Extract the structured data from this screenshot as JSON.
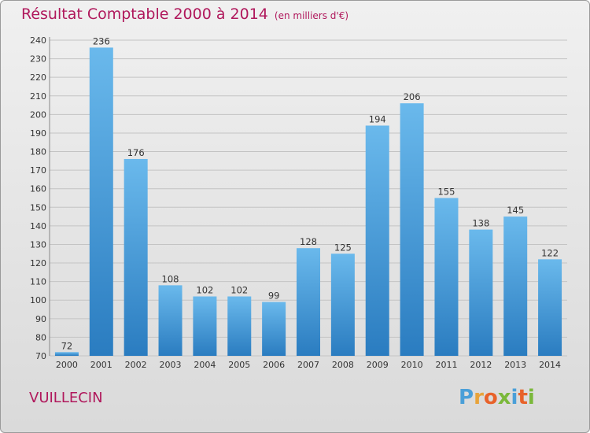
{
  "title": "Résultat Comptable 2000 à 2014",
  "subtitle": "(en milliers d'€)",
  "commune": "VUILLECIN",
  "logo": {
    "letters": [
      "P",
      "r",
      "o",
      "x",
      "i",
      "t",
      "i"
    ],
    "colors": [
      "#4a9fd8",
      "#e8a33a",
      "#e8622a",
      "#7ab83a",
      "#4a9fd8",
      "#e8622a",
      "#7ab83a"
    ]
  },
  "colors": {
    "title": "#b0185c",
    "bar_top": "#6ab9ec",
    "bar_bottom": "#2a7cc0"
  },
  "chart_data": {
    "type": "bar",
    "categories": [
      "2000",
      "2001",
      "2002",
      "2003",
      "2004",
      "2005",
      "2006",
      "2007",
      "2008",
      "2009",
      "2010",
      "2011",
      "2012",
      "2013",
      "2014"
    ],
    "values": [
      72,
      236,
      176,
      108,
      102,
      102,
      99,
      128,
      125,
      194,
      206,
      155,
      138,
      145,
      122
    ],
    "ylim": [
      70,
      240
    ],
    "yticks": [
      70,
      80,
      90,
      100,
      110,
      120,
      130,
      140,
      150,
      160,
      170,
      180,
      190,
      200,
      210,
      220,
      230,
      240
    ],
    "grid": true,
    "data_labels": true
  }
}
